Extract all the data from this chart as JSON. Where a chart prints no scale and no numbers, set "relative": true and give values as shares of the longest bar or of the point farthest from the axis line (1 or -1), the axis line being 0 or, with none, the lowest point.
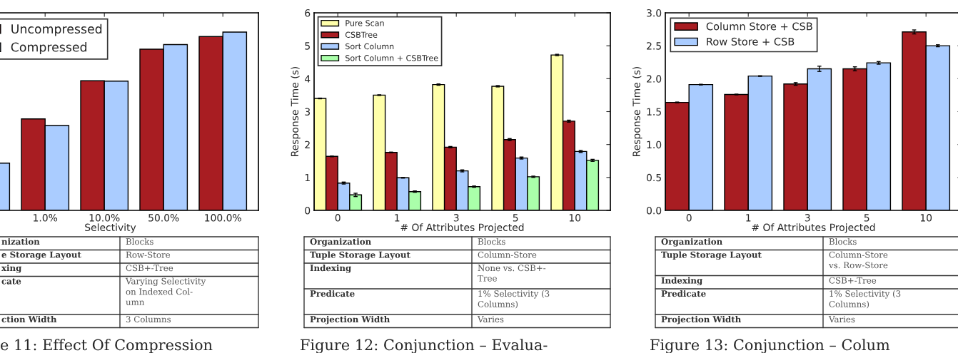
{
  "chart_data": [
    {
      "type": "bar",
      "relative": true,
      "xlabel": "Selectivity",
      "legend": "top left",
      "categories": [
        null,
        "1.0%",
        "10.0%",
        "50.0%",
        "100.0%"
      ],
      "series": [
        {
          "name": "Uncompressed",
          "color": "#a81d22",
          "values": [
            null,
            0.513,
            0.727,
            0.904,
            0.975
          ]
        },
        {
          "name": "Compressed",
          "color": "#aaccff",
          "values": [
            0.265,
            0.476,
            0.725,
            0.93,
            1.0
          ]
        }
      ],
      "annotations": [
        "nization",
        "Blocks",
        "e Storage Layout",
        "Row-Store",
        "xing",
        "CSB+-Tree",
        "cate",
        "Varying Selectivity\non Indexed Col-\numn",
        "ction Width",
        "3 Columns",
        "e 11: Effect Of Compression"
      ]
    },
    {
      "type": "bar",
      "xlabel": "# Of Attributes Projected",
      "ylabel": "Response Time (s)",
      "legend": "top left",
      "categories": [
        "0",
        "1",
        "3",
        "5",
        "10"
      ],
      "ylim": [
        0,
        6
      ],
      "yticks": [
        0,
        1,
        2,
        3,
        4,
        5,
        6
      ],
      "series": [
        {
          "name": "Pure Scan",
          "color": "#ffffaa",
          "values": [
            3.4,
            3.5,
            3.82,
            3.77,
            4.72
          ],
          "errors": [
            0.01,
            0.01,
            0.02,
            0.02,
            0.02
          ]
        },
        {
          "name": "CSBTree",
          "color": "#a81d22",
          "values": [
            1.64,
            1.76,
            1.92,
            2.15,
            2.71
          ],
          "errors": [
            0.01,
            0.01,
            0.02,
            0.03,
            0.03
          ]
        },
        {
          "name": "Sort Column",
          "color": "#aaccff",
          "values": [
            0.83,
            0.99,
            1.2,
            1.59,
            1.79
          ],
          "errors": [
            0.03,
            0.01,
            0.03,
            0.03,
            0.03
          ]
        },
        {
          "name": "Sort Column + CSBTree",
          "color": "#aaffaa",
          "values": [
            0.47,
            0.57,
            0.72,
            1.02,
            1.52
          ],
          "errors": [
            0.05,
            0.02,
            0.02,
            0.02,
            0.03
          ]
        }
      ],
      "annotations": [
        "Organization",
        "Blocks",
        "Tuple Storage Layout",
        "Column-Store",
        "Indexing",
        "None vs. CSB+-\nTree",
        "Predicate",
        "1% Selectivity (3\nColumns)",
        "Projection Width",
        "Varies",
        "Figure 12: Conjunction – Evalua-"
      ]
    },
    {
      "type": "bar",
      "xlabel": "# Of Attributes Projected",
      "ylabel": "Response Time (s)",
      "legend": "top left",
      "categories": [
        "0",
        "1",
        "3",
        "5",
        "10"
      ],
      "ylim": [
        0,
        3
      ],
      "yticks": [
        {
          "value": 0,
          "label": "0.0"
        },
        {
          "value": 0.5,
          "label": "0.5"
        },
        {
          "value": 1,
          "label": "1.0"
        },
        {
          "value": 1.5,
          "label": "1.5"
        },
        {
          "value": 2,
          "label": "2.0"
        },
        {
          "value": 2.5,
          "label": "2.5"
        },
        {
          "value": 3,
          "label": "3.0"
        }
      ],
      "series": [
        {
          "name": "Column Store + CSB",
          "color": "#a81d22",
          "values": [
            1.64,
            1.76,
            1.92,
            2.15,
            2.71
          ],
          "errors": [
            0.005,
            0.005,
            0.02,
            0.03,
            0.03
          ]
        },
        {
          "name": "Row Store + CSB",
          "color": "#aaccff",
          "values": [
            1.91,
            2.04,
            2.15,
            2.24,
            2.5
          ],
          "errors": [
            0.005,
            0.005,
            0.04,
            0.02,
            0.015
          ]
        }
      ],
      "annotations": [
        "Organization",
        "Blocks",
        "Tuple Storage Layout",
        "Column-Store\nvs. Row-Store",
        "Indexing",
        "CSB+-Tree",
        "Predicate",
        "1% Selectivity (3\nColumns)",
        "Projection Width",
        "Varies",
        "Figure 13: Conjunction – Colum"
      ]
    }
  ]
}
